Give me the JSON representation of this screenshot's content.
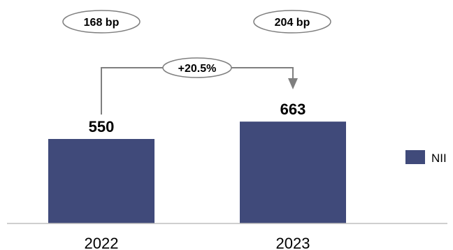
{
  "chart_data": {
    "type": "bar",
    "categories": [
      "2022",
      "2023"
    ],
    "series": [
      {
        "name": "NII",
        "values": [
          550,
          663
        ],
        "color": "#404a7a"
      }
    ],
    "data_labels": [
      "550",
      "663"
    ],
    "ellipse_labels": [
      "168 bp",
      "204 bp"
    ],
    "change_label": "+20.5%",
    "legend_position": "right",
    "grid": false,
    "ylim": [
      0,
      1000
    ]
  }
}
